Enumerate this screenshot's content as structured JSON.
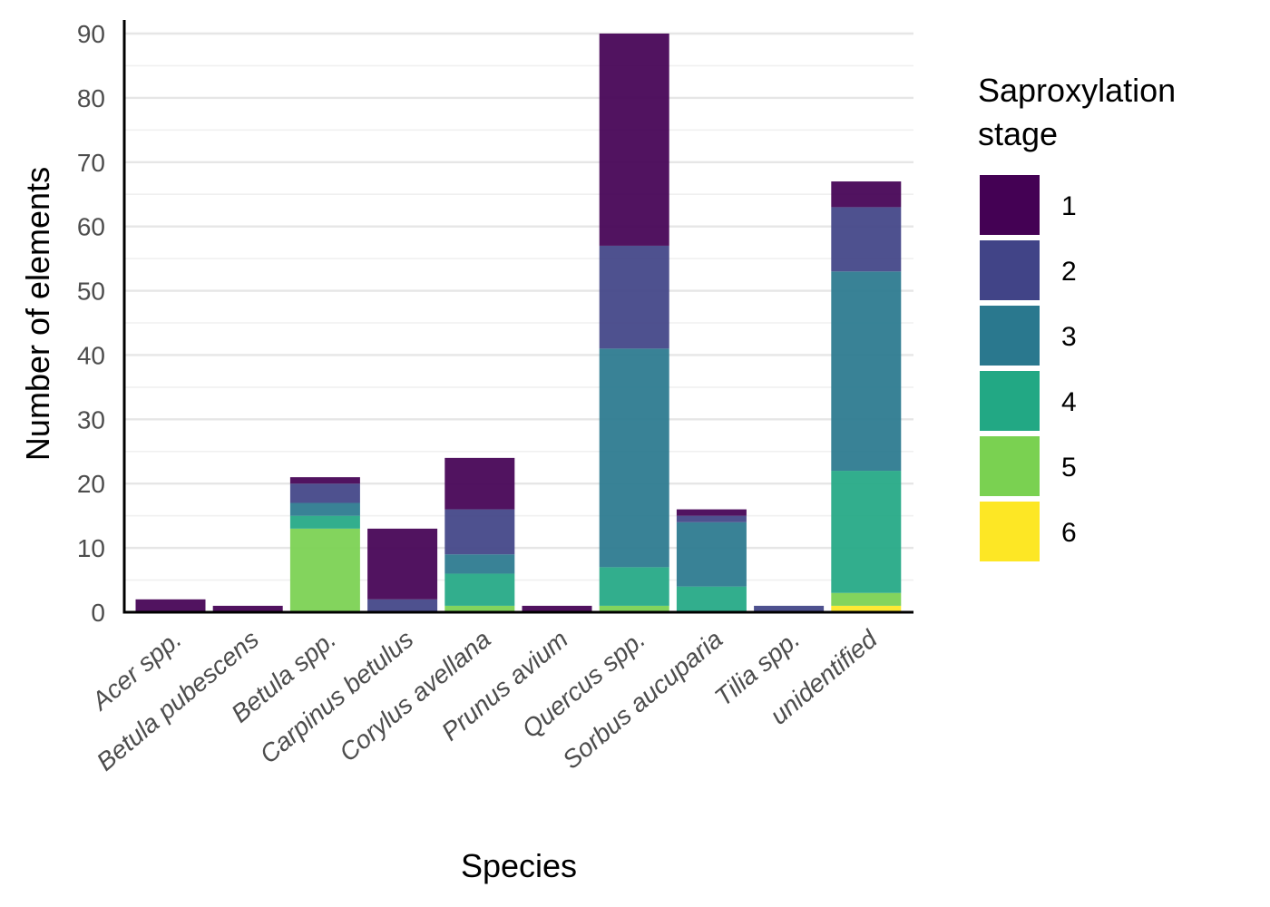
{
  "chart_data": {
    "type": "bar",
    "stacked": true,
    "title": "",
    "xlabel": "Species",
    "ylabel": "Number of elements",
    "ylim": [
      0,
      90
    ],
    "y_ticks": [
      0,
      10,
      20,
      30,
      40,
      50,
      60,
      70,
      80,
      90
    ],
    "grid": true,
    "legend": {
      "title_lines": [
        "Saproxylation",
        "stage"
      ],
      "placement": "right"
    },
    "categories": [
      "Acer spp.",
      "Betula pubescens",
      "Betula spp.",
      "Carpinus betulus",
      "Corylus avellana",
      "Prunus avium",
      "Quercus spp.",
      "Sorbus aucuparia",
      "Tilia spp.",
      "unidentified"
    ],
    "series": [
      {
        "name": "1",
        "color": "#440154",
        "values": [
          2,
          1,
          1,
          11,
          8,
          1,
          33,
          1,
          0,
          4
        ]
      },
      {
        "name": "2",
        "color": "#414487",
        "values": [
          0,
          0,
          3,
          2,
          7,
          0,
          16,
          1,
          1,
          10
        ]
      },
      {
        "name": "3",
        "color": "#2A788E",
        "values": [
          0,
          0,
          2,
          0,
          3,
          0,
          34,
          10,
          0,
          31
        ]
      },
      {
        "name": "4",
        "color": "#22A884",
        "values": [
          0,
          0,
          2,
          0,
          5,
          0,
          6,
          4,
          0,
          19
        ]
      },
      {
        "name": "5",
        "color": "#7AD151",
        "values": [
          0,
          0,
          13,
          0,
          1,
          0,
          1,
          0,
          0,
          2
        ]
      },
      {
        "name": "6",
        "color": "#FDE725",
        "values": [
          0,
          0,
          0,
          0,
          0,
          0,
          0,
          0,
          0,
          1
        ]
      }
    ]
  }
}
